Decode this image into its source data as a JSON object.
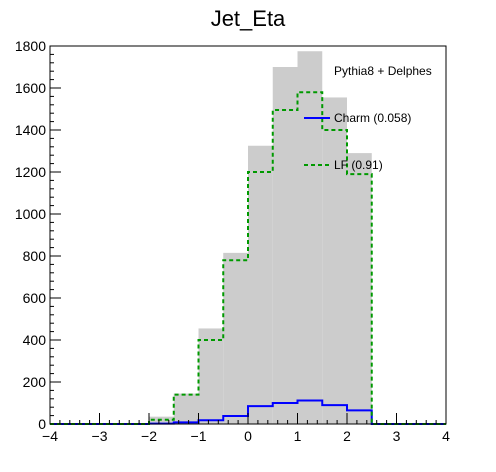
{
  "chart_data": {
    "type": "bar",
    "title": "Jet_Eta",
    "xlabel": "",
    "ylabel": "",
    "xlim": [
      -4,
      4
    ],
    "ylim": [
      0,
      1800
    ],
    "bin_edges": [
      -4,
      -3.5,
      -3,
      -2.5,
      -2,
      -1.5,
      -1,
      -0.5,
      0,
      0.5,
      1,
      1.5,
      2,
      2.5,
      3,
      3.5,
      4
    ],
    "x_ticks": [
      -4,
      -3,
      -2,
      -1,
      0,
      1,
      2,
      3,
      4
    ],
    "y_ticks": [
      0,
      200,
      400,
      600,
      800,
      1000,
      1200,
      1400,
      1600,
      1800
    ],
    "annotation": "Pythia8 + Delphes",
    "legend_placement": "right",
    "series": [
      {
        "name": "",
        "style": "filled",
        "color": "#cccccc",
        "values": [
          0,
          0,
          0,
          0,
          35,
          145,
          455,
          815,
          1325,
          1700,
          1775,
          1555,
          1290,
          0,
          0,
          0
        ]
      },
      {
        "name": "Charm (0.058)",
        "style": "solid",
        "color": "#0000ff",
        "values": [
          0,
          0,
          0,
          0,
          2,
          8,
          18,
          38,
          85,
          100,
          112,
          90,
          65,
          0,
          0,
          0
        ]
      },
      {
        "name": "LF (0.91)",
        "style": "dashed",
        "color": "#009900",
        "values": [
          0,
          0,
          0,
          0,
          20,
          140,
          400,
          780,
          1200,
          1495,
          1580,
          1400,
          1190,
          0,
          0,
          0
        ]
      }
    ]
  }
}
